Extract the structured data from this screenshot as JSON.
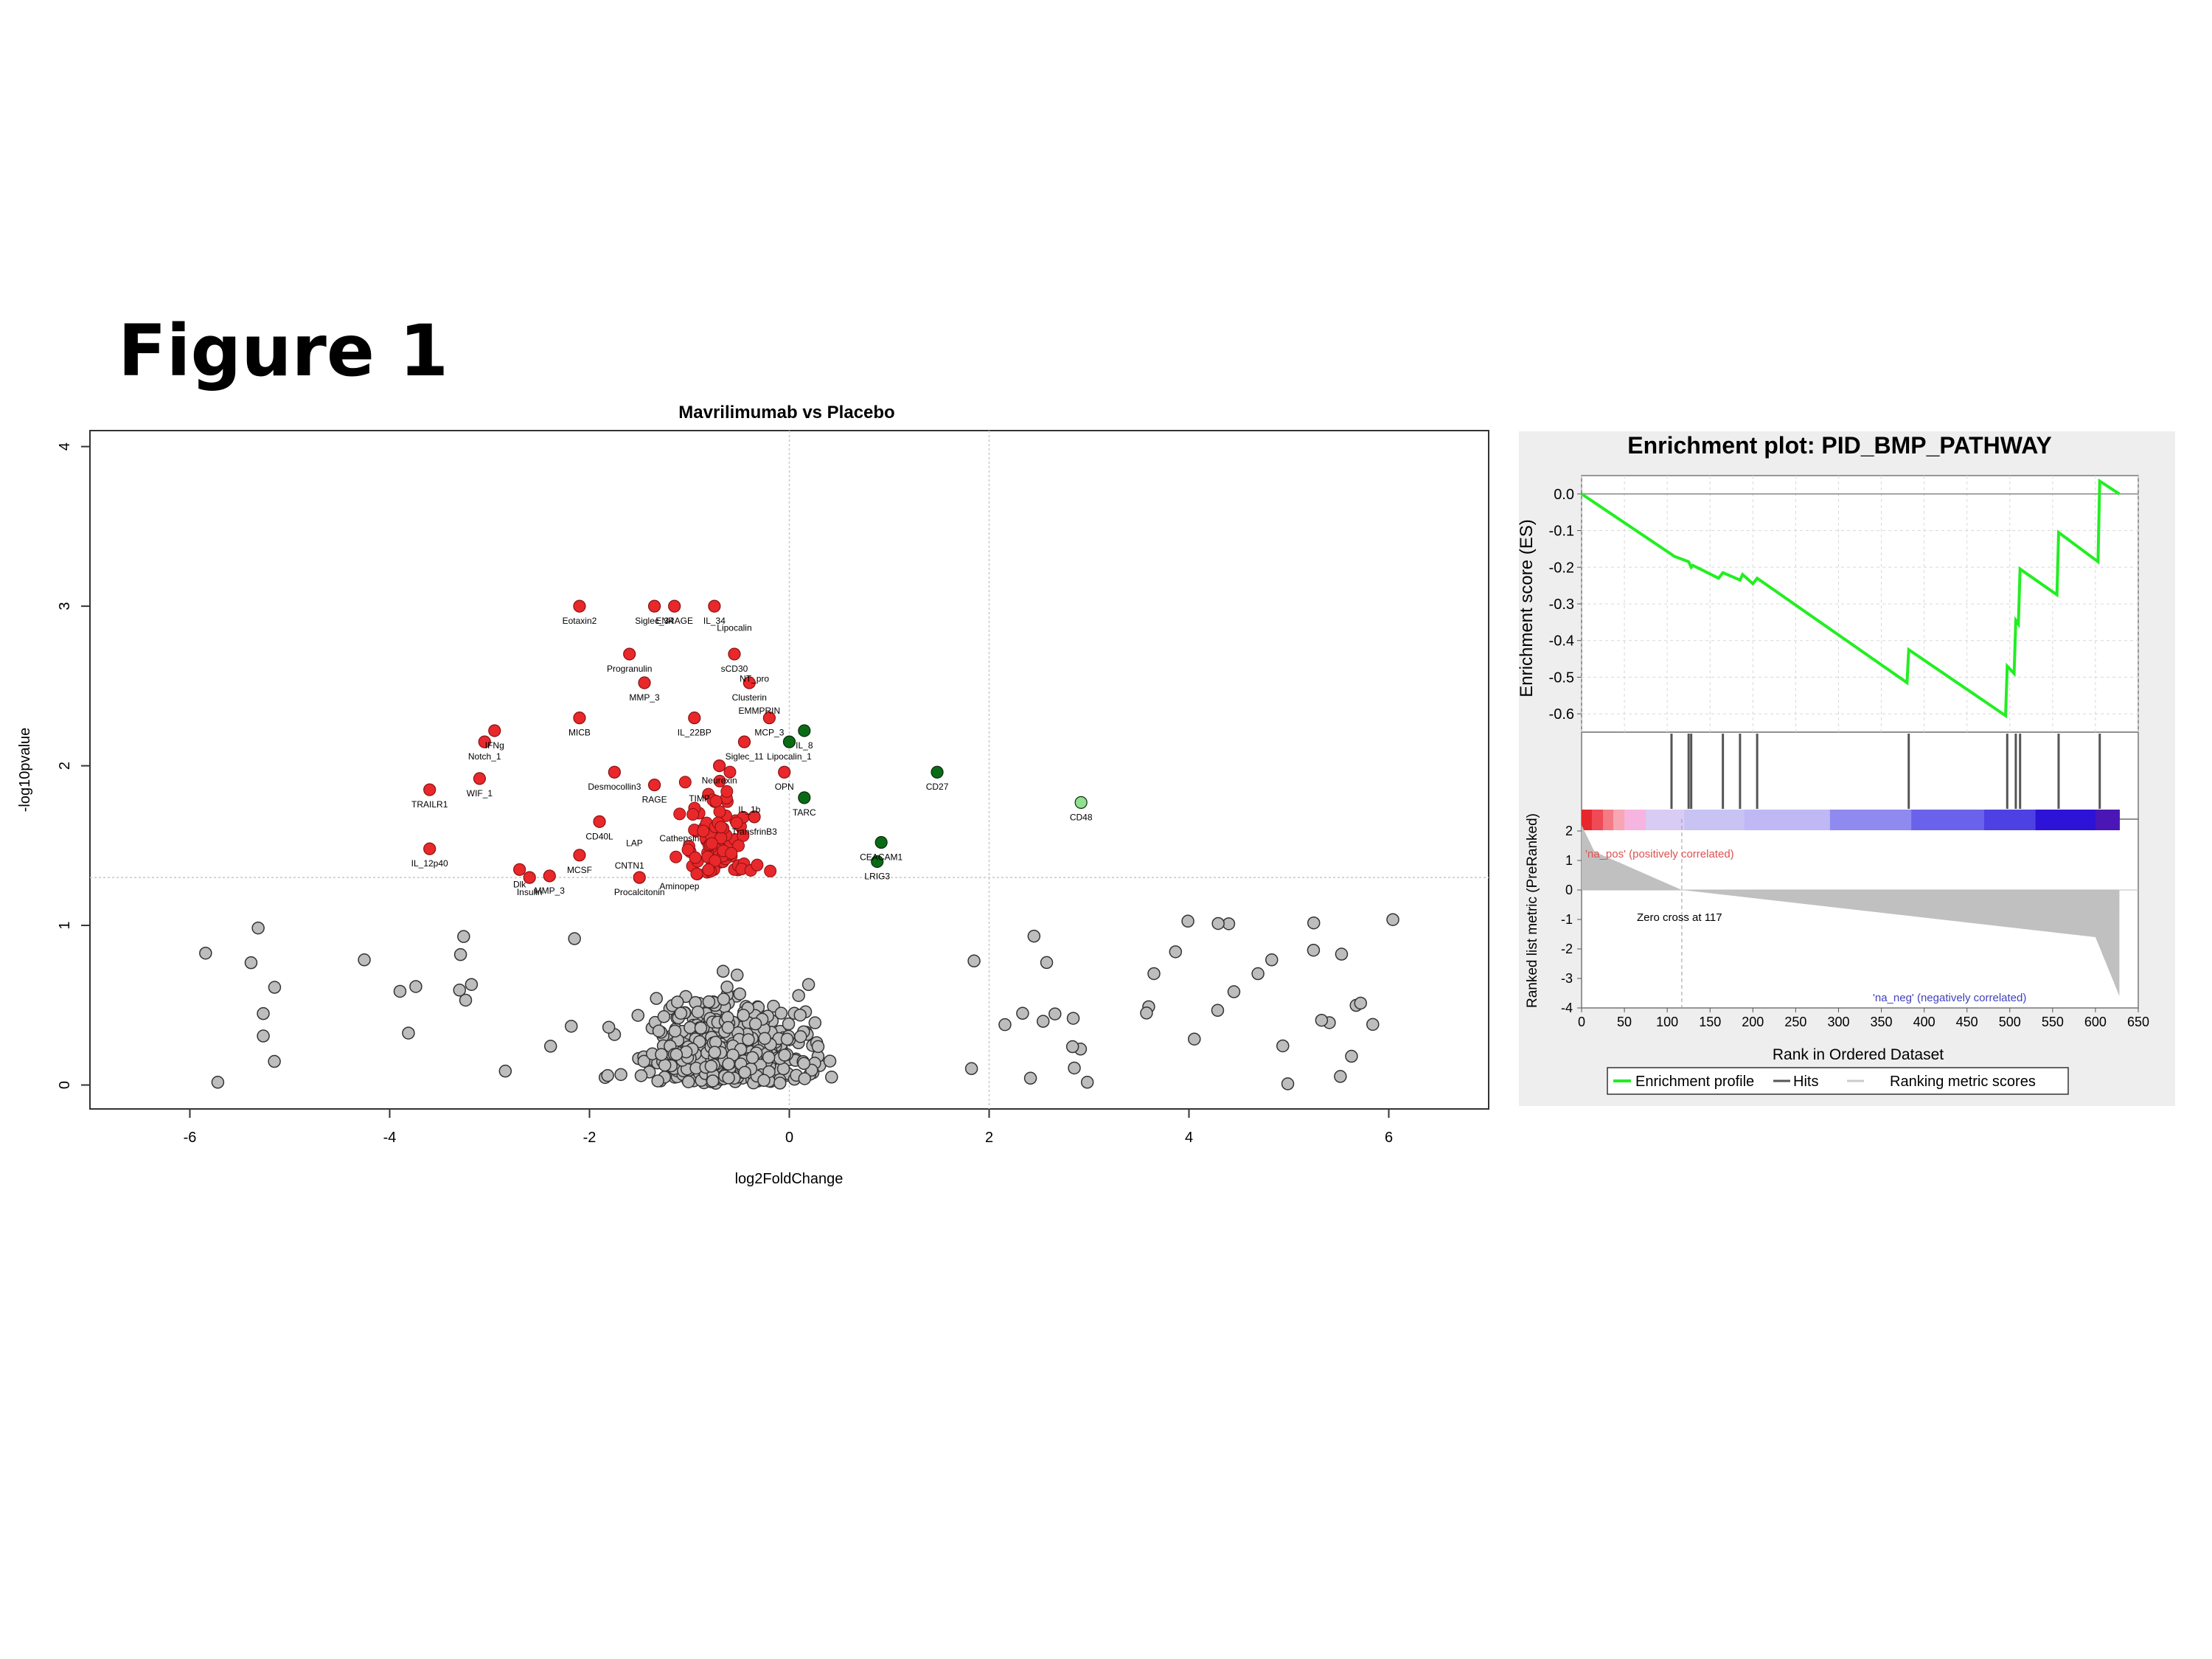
{
  "figure_title": "Figure 1",
  "chart_data": [
    {
      "type": "scatter",
      "title": "Mavrilimumab vs Placebo",
      "xlabel": "log2FoldChange",
      "ylabel": "-log10pvalue",
      "xlim": [
        -7,
        7
      ],
      "ylim": [
        -0.15,
        4.1
      ],
      "x_ticks": [
        -6,
        -4,
        -2,
        0,
        2,
        4,
        6
      ],
      "y_ticks": [
        0,
        1,
        2,
        3,
        4
      ],
      "threshold_x": [
        0,
        2
      ],
      "threshold_y": 1.3,
      "colors": {
        "down_sig": "#e8282b",
        "up_sig": "#0a6b16",
        "up_light": "#8fe08f",
        "ns": "#bdbdbd"
      },
      "labeled_points": [
        {
          "label": "Eotaxin2",
          "x": -2.1,
          "y": 3.0,
          "group": "down_sig"
        },
        {
          "label": "Siglec_34",
          "x": -1.35,
          "y": 3.0,
          "group": "down_sig"
        },
        {
          "label": "ENRAGE",
          "x": -1.15,
          "y": 3.0,
          "group": "down_sig"
        },
        {
          "label": "IL_34",
          "x": -0.75,
          "y": 3.0,
          "group": "down_sig"
        },
        {
          "label": "Progranulin",
          "x": -1.6,
          "y": 2.7,
          "group": "down_sig"
        },
        {
          "label": "sCD30",
          "x": -0.55,
          "y": 2.7,
          "group": "down_sig"
        },
        {
          "label": "MMP_3",
          "x": -1.45,
          "y": 2.52,
          "group": "down_sig"
        },
        {
          "label": "Clusterin",
          "x": -0.4,
          "y": 2.52,
          "group": "down_sig"
        },
        {
          "label": "MCP_3",
          "x": -0.2,
          "y": 2.3,
          "group": "down_sig"
        },
        {
          "label": "IL_22BP",
          "x": -0.95,
          "y": 2.3,
          "group": "down_sig"
        },
        {
          "label": "MICB",
          "x": -2.1,
          "y": 2.3,
          "group": "down_sig"
        },
        {
          "label": "IFNg",
          "x": -2.95,
          "y": 2.22,
          "group": "down_sig"
        },
        {
          "label": "Siglec_11",
          "x": -0.45,
          "y": 2.15,
          "group": "down_sig"
        },
        {
          "label": "Notch_1",
          "x": -3.05,
          "y": 2.15,
          "group": "down_sig"
        },
        {
          "label": "IL_8",
          "x": 0.15,
          "y": 2.22,
          "group": "up_sig"
        },
        {
          "label": "Lipocalin_1",
          "x": 0.0,
          "y": 2.15,
          "group": "up_sig"
        },
        {
          "label": "Neurexin",
          "x": -0.7,
          "y": 2.0,
          "group": "down_sig"
        },
        {
          "label": "Desmocollin3",
          "x": -1.75,
          "y": 1.96,
          "group": "down_sig"
        },
        {
          "label": "OPN",
          "x": -0.05,
          "y": 1.96,
          "group": "down_sig"
        },
        {
          "label": "WIF_1",
          "x": -3.1,
          "y": 1.92,
          "group": "down_sig"
        },
        {
          "label": "RAGE",
          "x": -1.35,
          "y": 1.88,
          "group": "down_sig"
        },
        {
          "label": "TRAILR1",
          "x": -3.6,
          "y": 1.85,
          "group": "down_sig"
        },
        {
          "label": "TARC",
          "x": 0.15,
          "y": 1.8,
          "group": "up_sig"
        },
        {
          "label": "CD27",
          "x": 1.48,
          "y": 1.96,
          "group": "up_sig"
        },
        {
          "label": "CD48",
          "x": 2.92,
          "y": 1.77,
          "group": "up_light"
        },
        {
          "label": "CD40L",
          "x": -1.9,
          "y": 1.65,
          "group": "down_sig"
        },
        {
          "label": "TransfrinB3",
          "x": -0.35,
          "y": 1.68,
          "group": "down_sig"
        },
        {
          "label": "IL_12p40",
          "x": -3.6,
          "y": 1.48,
          "group": "down_sig"
        },
        {
          "label": "MCSF",
          "x": -2.1,
          "y": 1.44,
          "group": "down_sig"
        },
        {
          "label": "CEACAM1",
          "x": 0.92,
          "y": 1.52,
          "group": "up_sig"
        },
        {
          "label": "LRIG3",
          "x": 0.88,
          "y": 1.4,
          "group": "up_sig"
        },
        {
          "label": "Dlk",
          "x": -2.7,
          "y": 1.35,
          "group": "down_sig"
        },
        {
          "label": "Insulin",
          "x": -2.6,
          "y": 1.3,
          "group": "down_sig"
        },
        {
          "label": "MMP_3",
          "x": -2.4,
          "y": 1.31,
          "group": "down_sig"
        },
        {
          "label": "Procalcitonin",
          "x": -1.5,
          "y": 1.3,
          "group": "down_sig"
        }
      ],
      "extra_text_labels": [
        {
          "label": "Lipocalin",
          "x": -0.55,
          "y": 2.87
        },
        {
          "label": "NT_pro",
          "x": -0.35,
          "y": 2.55
        },
        {
          "label": "EMMPRIN",
          "x": -0.3,
          "y": 2.35
        },
        {
          "label": "Cathepsin",
          "x": -1.1,
          "y": 1.55
        },
        {
          "label": "Aminopep",
          "x": -1.1,
          "y": 1.25
        },
        {
          "label": "LAP",
          "x": -1.55,
          "y": 1.52
        },
        {
          "label": "CNTN1",
          "x": -1.6,
          "y": 1.38
        },
        {
          "label": "IL_1b",
          "x": -0.4,
          "y": 1.73
        },
        {
          "label": "TIMP",
          "x": -0.9,
          "y": 1.8
        }
      ]
    },
    {
      "type": "line",
      "title": "Enrichment plot: PID_BMP_PATHWAY",
      "xlabel": "Rank in Ordered Dataset",
      "ylabel_top": "Enrichment score (ES)",
      "ylabel_bottom": "Ranked list metric (PreRanked)",
      "x_ticks": [
        0,
        50,
        100,
        150,
        200,
        250,
        300,
        350,
        400,
        450,
        500,
        550,
        600,
        650
      ],
      "es_y_ticks": [
        "0.0",
        "-0.1",
        "-0.2",
        "-0.3",
        "-0.4",
        "-0.5",
        "-0.6"
      ],
      "metric_y_ticks": [
        "2",
        "1",
        "0",
        "-1",
        "-2",
        "-3",
        "-4"
      ],
      "es_ylim": [
        -0.65,
        0.05
      ],
      "metric_ylim": [
        -4,
        2.4
      ],
      "xlim": [
        0,
        650
      ],
      "es_curve": [
        {
          "x": 0,
          "y": 0.0
        },
        {
          "x": 105,
          "y": -0.165
        },
        {
          "x": 108,
          "y": -0.17
        },
        {
          "x": 125,
          "y": -0.185
        },
        {
          "x": 128,
          "y": -0.2
        },
        {
          "x": 130,
          "y": -0.195
        },
        {
          "x": 160,
          "y": -0.23
        },
        {
          "x": 165,
          "y": -0.215
        },
        {
          "x": 185,
          "y": -0.235
        },
        {
          "x": 188,
          "y": -0.22
        },
        {
          "x": 200,
          "y": -0.245
        },
        {
          "x": 205,
          "y": -0.23
        },
        {
          "x": 380,
          "y": -0.515
        },
        {
          "x": 382,
          "y": -0.425
        },
        {
          "x": 495,
          "y": -0.605
        },
        {
          "x": 497,
          "y": -0.47
        },
        {
          "x": 505,
          "y": -0.49
        },
        {
          "x": 507,
          "y": -0.345
        },
        {
          "x": 510,
          "y": -0.355
        },
        {
          "x": 512,
          "y": -0.205
        },
        {
          "x": 555,
          "y": -0.275
        },
        {
          "x": 557,
          "y": -0.105
        },
        {
          "x": 603,
          "y": -0.185
        },
        {
          "x": 605,
          "y": 0.035
        },
        {
          "x": 628,
          "y": 0.0
        }
      ],
      "hits": [
        105,
        125,
        128,
        165,
        185,
        205,
        382,
        497,
        507,
        512,
        557,
        605
      ],
      "zero_cross_rank": 117,
      "zero_cross_text": "Zero cross at 117",
      "pos_label": "'na_pos' (positively correlated)",
      "neg_label": "'na_neg' (negatively correlated)",
      "legend": [
        "Enrichment profile",
        "Hits",
        "Ranking metric scores"
      ],
      "colors": {
        "profile": "#22ee22",
        "hits": "#555555",
        "metric": "#c0c0c0",
        "pos_text": "#e05050",
        "neg_text": "#4040c0"
      }
    }
  ]
}
